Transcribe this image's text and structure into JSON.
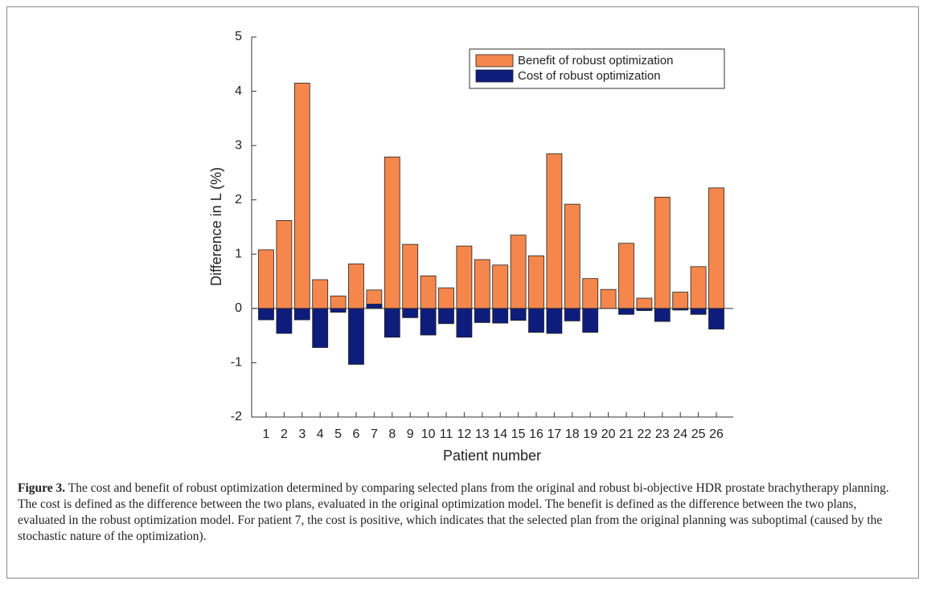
{
  "chart_data": {
    "type": "bar",
    "xlabel": "Patient number",
    "ylabel": "Difference in L (%)",
    "categories": [
      "1",
      "2",
      "3",
      "4",
      "5",
      "6",
      "7",
      "8",
      "9",
      "10",
      "11",
      "12",
      "13",
      "14",
      "15",
      "16",
      "17",
      "18",
      "19",
      "20",
      "21",
      "22",
      "23",
      "24",
      "25",
      "26"
    ],
    "series": [
      {
        "name": "Benefit of robust optimization",
        "color": "#f5874c",
        "values": [
          1.08,
          1.62,
          4.15,
          0.53,
          0.23,
          0.82,
          0.34,
          2.79,
          1.18,
          0.6,
          0.38,
          1.15,
          0.9,
          0.8,
          1.35,
          0.97,
          2.85,
          1.92,
          0.55,
          0.35,
          1.2,
          0.19,
          2.05,
          0.3,
          0.77,
          2.22
        ]
      },
      {
        "name": "Cost of robust optimization",
        "color": "#0e1c7c",
        "values": [
          -0.21,
          -0.46,
          -0.21,
          -0.72,
          -0.07,
          -1.03,
          0.08,
          -0.53,
          -0.17,
          -0.49,
          -0.28,
          -0.53,
          -0.26,
          -0.27,
          -0.22,
          -0.44,
          -0.46,
          -0.23,
          -0.44,
          0,
          -0.11,
          -0.04,
          -0.24,
          -0.03,
          -0.11,
          -0.38
        ]
      }
    ],
    "ylim": [
      -2,
      5
    ],
    "yticks": [
      -2,
      -1,
      0,
      1,
      2,
      3,
      4,
      5
    ],
    "legend": "upper right"
  },
  "caption": {
    "label": "Figure 3.",
    "text": "The cost and benefit of robust optimization determined by comparing selected plans from the original and robust bi-objective HDR prostate brachytherapy planning. The cost is defined as the difference between the two plans, evaluated in the original optimization model. The benefit is defined as the difference between the two plans, evaluated in the robust optimization model. For patient 7, the cost is positive, which indicates that the selected plan from the original planning was suboptimal (caused by the stochastic nature of the optimization)."
  }
}
